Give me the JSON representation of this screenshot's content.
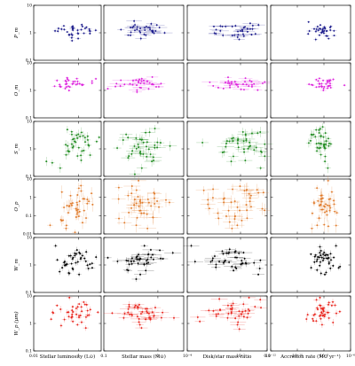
{
  "chart_data": {
    "type": "scatter",
    "layout": "grid-6x4",
    "columns": [
      {
        "id": "lum",
        "xlabel": "Stellar luminosity (L⊙)",
        "scale": "log",
        "xlim": [
          0.01,
          10
        ],
        "xticks": [
          {
            "v": 0.01,
            "label": "0.01"
          },
          {
            "v": 1,
            "label": "1"
          }
        ]
      },
      {
        "id": "mass",
        "xlabel": "Stellar mass (M⊙)",
        "scale": "log",
        "xlim": [
          0.1,
          3
        ],
        "xticks": [
          {
            "v": 0.1,
            "label": "0.1"
          },
          {
            "v": 1,
            "label": "1"
          }
        ]
      },
      {
        "id": "ratio",
        "xlabel": "Disk/star mass ratio",
        "scale": "log",
        "xlim": [
          0.0001,
          0.1
        ],
        "xticks": [
          {
            "v": 0.0001,
            "label": "10⁻⁴"
          },
          {
            "v": 0.01,
            "label": "10⁻²"
          },
          {
            "v": 0.1,
            "label": "0.1"
          }
        ]
      },
      {
        "id": "acc",
        "xlabel": "Accretion rate (M⊙ yr⁻¹)",
        "scale": "log",
        "xlim": [
          1e-12,
          1e-06
        ],
        "xticks": [
          {
            "v": 1e-12,
            "label": "10⁻¹²"
          },
          {
            "v": 1e-10,
            "label": "10⁻¹⁰"
          },
          {
            "v": 1e-08,
            "label": "10⁻⁸"
          },
          {
            "v": 1e-06,
            "label": "10⁻⁶"
          }
        ]
      }
    ],
    "rows": [
      {
        "id": "pm",
        "ylabel": "P_m",
        "color": "#1c1c8c",
        "scale": "log",
        "ylim": [
          0.1,
          10
        ],
        "yticks": [
          {
            "v": 0.1,
            "label": "0.1"
          },
          {
            "v": 1,
            "label": "1"
          },
          {
            "v": 10,
            "label": "10"
          }
        ],
        "center": 1.2,
        "spread": 0.14,
        "yerr": 0.05,
        "n": 34,
        "outliers": [
          0.82,
          1.7
        ]
      },
      {
        "id": "om",
        "ylabel": "O_m",
        "color": "#dd22dd",
        "scale": "log",
        "ylim": [
          0.1,
          10
        ],
        "yticks": [
          {
            "v": 0.1,
            "label": "0.1"
          },
          {
            "v": 1,
            "label": "1"
          },
          {
            "v": 10,
            "label": "10"
          }
        ],
        "center": 1.7,
        "spread": 0.11,
        "yerr": 0.04,
        "n": 34,
        "outliers": [
          1.35,
          2.3
        ]
      },
      {
        "id": "sm",
        "ylabel": "S_m",
        "color": "#1e8a1e",
        "scale": "log",
        "ylim": [
          0.1,
          10
        ],
        "yticks": [
          {
            "v": 0.1,
            "label": "0.1"
          },
          {
            "v": 1,
            "label": "1"
          },
          {
            "v": 10,
            "label": "10"
          }
        ],
        "center": 1.6,
        "spread": 0.28,
        "yerr": 0.12,
        "n": 40,
        "outliers": [
          0.2,
          0.35
        ]
      },
      {
        "id": "op",
        "ylabel": "O_p",
        "color": "#e07a2a",
        "scale": "log",
        "ylim": [
          0.01,
          10
        ],
        "yticks": [
          {
            "v": 0.01,
            "label": "0.01"
          },
          {
            "v": 0.1,
            "label": "0.1"
          },
          {
            "v": 1,
            "label": "1"
          },
          {
            "v": 10,
            "label": "10"
          }
        ],
        "center": 0.45,
        "spread": 0.55,
        "yerr": 0.25,
        "n": 42,
        "outliers": [
          0.02,
          0.03
        ]
      },
      {
        "id": "wm",
        "ylabel": "W_m",
        "color": "#000000",
        "scale": "log",
        "ylim": [
          0.1,
          10
        ],
        "yticks": [
          {
            "v": 0.1,
            "label": "0.1"
          },
          {
            "v": 1,
            "label": "1"
          },
          {
            "v": 10,
            "label": "10"
          }
        ],
        "center": 1.5,
        "spread": 0.22,
        "yerr": 0.08,
        "n": 40,
        "outliers": [
          0.45,
          5.0
        ]
      },
      {
        "id": "wp",
        "ylabel": "W_p (μm)",
        "color": "#e8221a",
        "scale": "log",
        "ylim": [
          0.1,
          10
        ],
        "yticks": [
          {
            "v": 0.1,
            "label": "0.1"
          },
          {
            "v": 1,
            "label": "1"
          },
          {
            "v": 10,
            "label": "10"
          }
        ],
        "center": 2.3,
        "spread": 0.22,
        "yerr": 0.08,
        "n": 40,
        "outliers": [
          0.9,
          4.5
        ]
      }
    ],
    "x_distribution": {
      "lum": {
        "center": 0.7,
        "spread": 0.45
      },
      "mass": {
        "center": 0.5,
        "spread": 0.22
      },
      "ratio": {
        "center": 0.007,
        "spread": 0.55
      },
      "acc": {
        "center": 8e-09,
        "spread": 0.5
      }
    },
    "grid": false,
    "legend": "none"
  }
}
